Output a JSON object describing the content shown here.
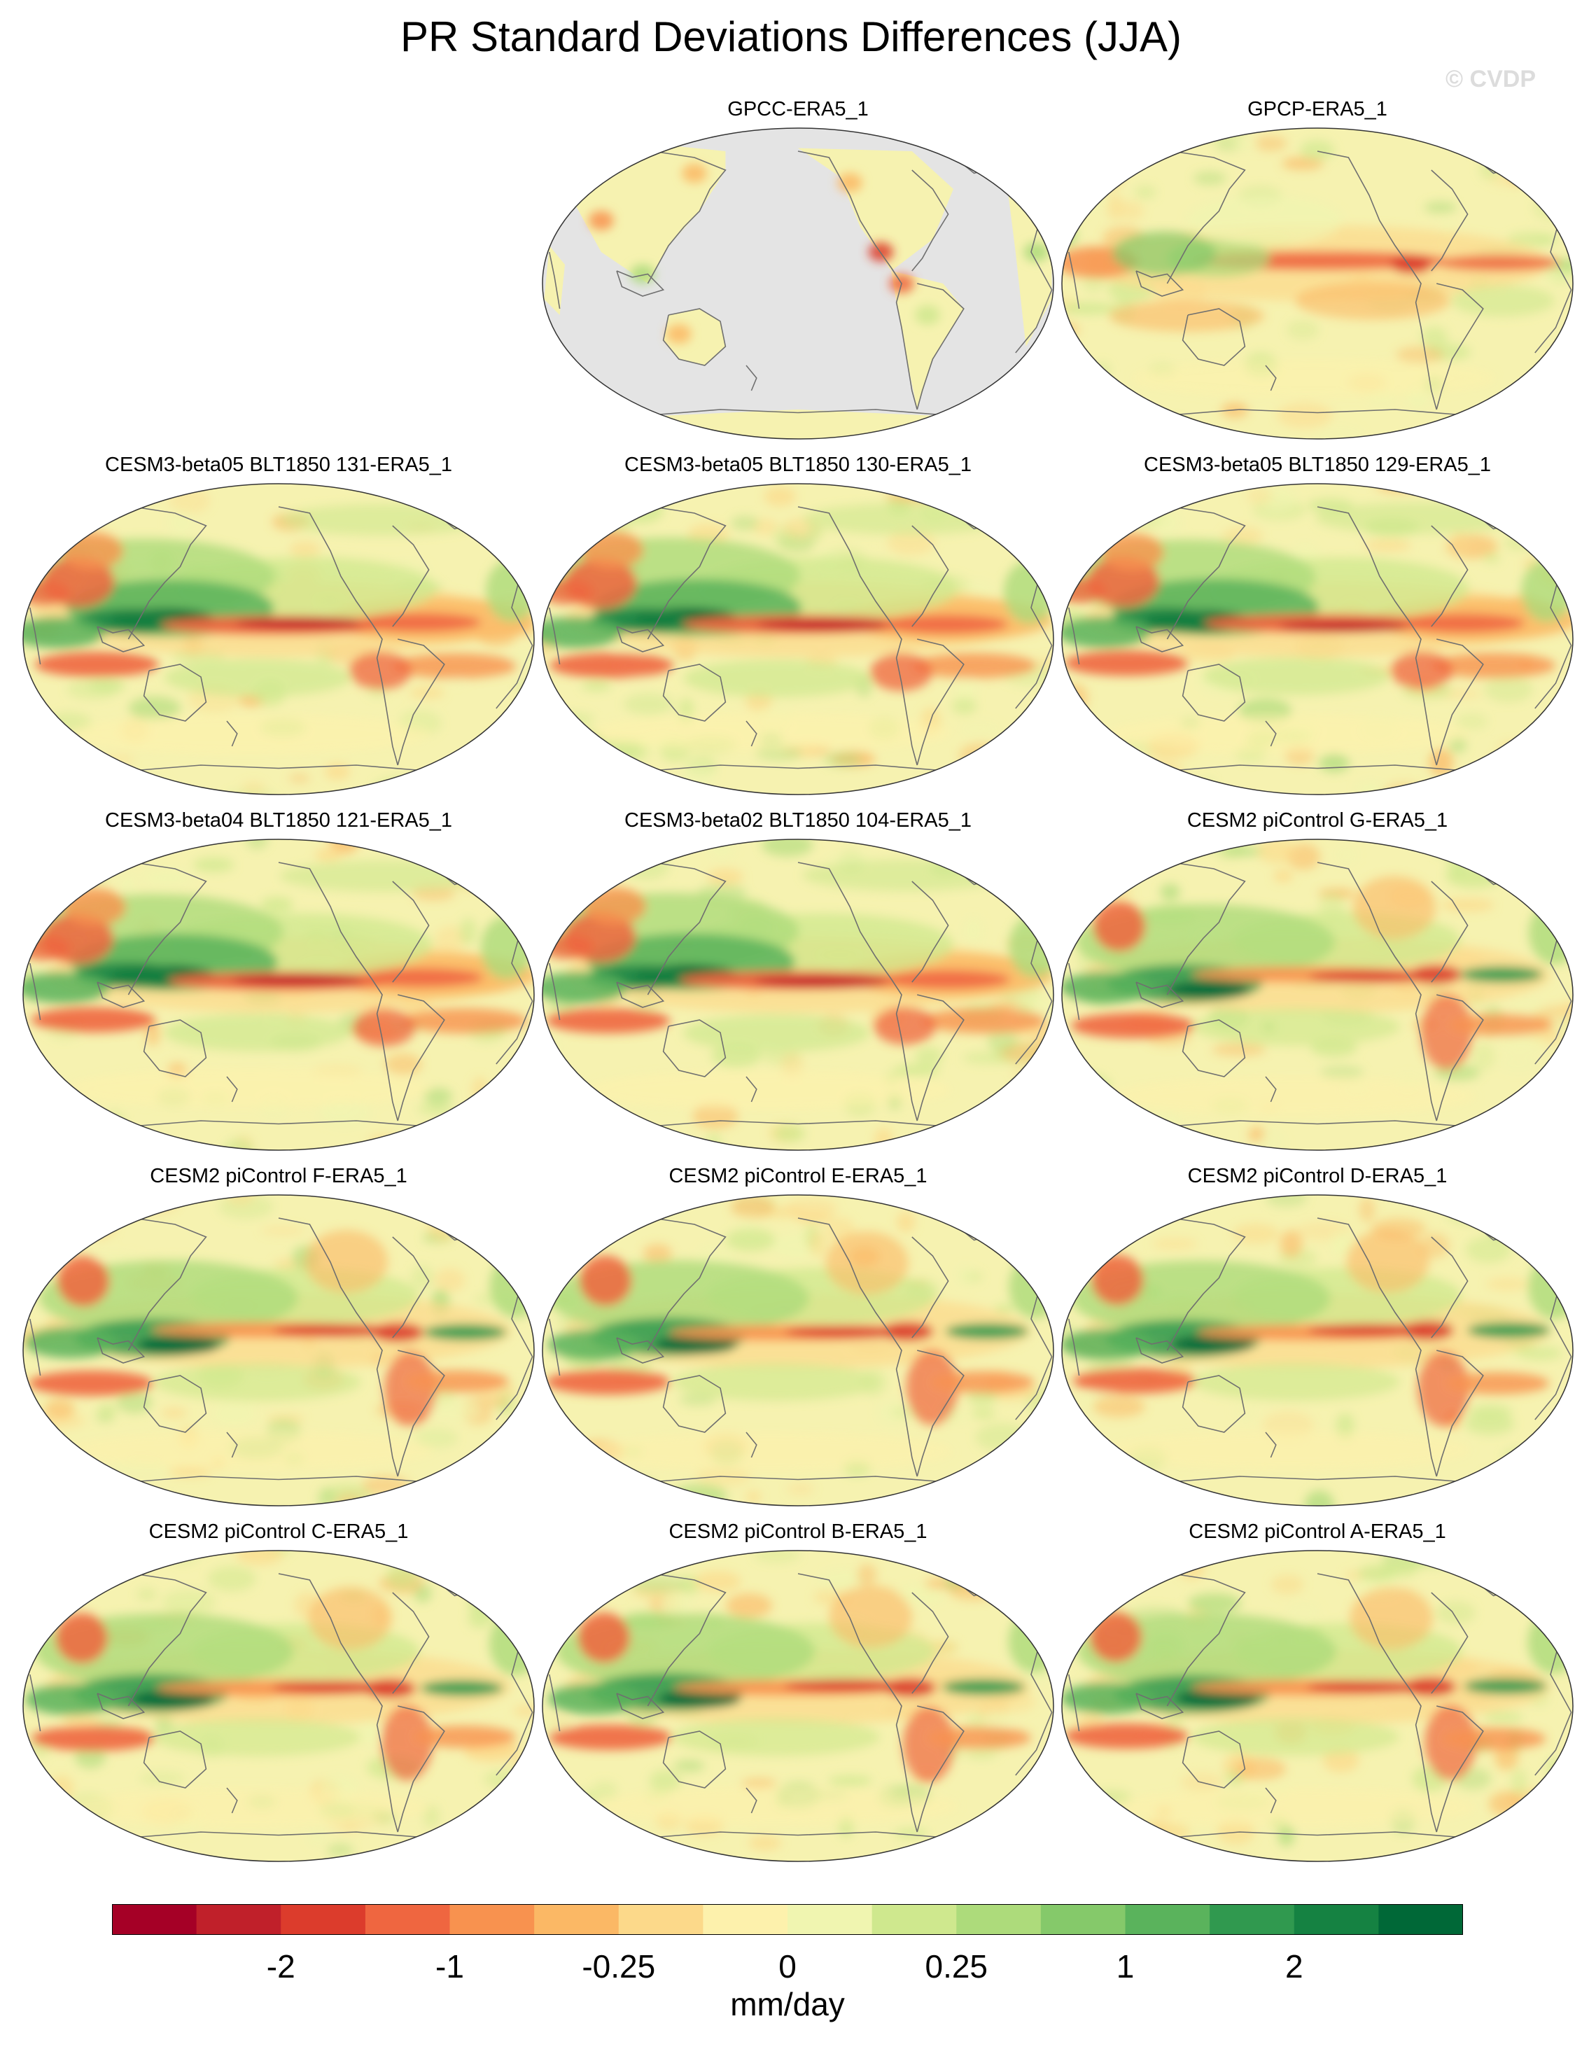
{
  "title": "PR Standard Deviations Differences (JJA)",
  "watermark": "© CVDP",
  "colors": {
    "ocean_mask": "#e4e4e4",
    "coast": "#6f6f6f",
    "base": "#f6f2b0",
    "scale": [
      "#a50026",
      "#c0202a",
      "#dc3c2c",
      "#ef6640",
      "#f8924f",
      "#fbb865",
      "#fcd98a",
      "#fdf1ac",
      "#f0f5b0",
      "#cfe88e",
      "#addb7b",
      "#85c96a",
      "#5ab35c",
      "#30994f",
      "#158242",
      "#006837"
    ]
  },
  "chart_data": {
    "type": "heatmap",
    "projection": "robinson (global, pacific-centered)",
    "panels": [
      {
        "id": "gpcc",
        "title": "GPCC-ERA5_1",
        "pattern": "land-only"
      },
      {
        "id": "gpcp",
        "title": "GPCP-ERA5_1",
        "pattern": "obs"
      },
      {
        "id": "b05-131",
        "title": "CESM3-beta05 BLT1850 131-ERA5_1",
        "pattern": "cesm3"
      },
      {
        "id": "b05-130",
        "title": "CESM3-beta05 BLT1850 130-ERA5_1",
        "pattern": "cesm3"
      },
      {
        "id": "b05-129",
        "title": "CESM3-beta05 BLT1850 129-ERA5_1",
        "pattern": "cesm3"
      },
      {
        "id": "b04-121",
        "title": "CESM3-beta04 BLT1850 121-ERA5_1",
        "pattern": "cesm3"
      },
      {
        "id": "b02-104",
        "title": "CESM3-beta02 BLT1850 104-ERA5_1",
        "pattern": "cesm3"
      },
      {
        "id": "pic-g",
        "title": "CESM2 piControl G-ERA5_1",
        "pattern": "cesm2"
      },
      {
        "id": "pic-f",
        "title": "CESM2 piControl F-ERA5_1",
        "pattern": "cesm2"
      },
      {
        "id": "pic-e",
        "title": "CESM2 piControl E-ERA5_1",
        "pattern": "cesm2"
      },
      {
        "id": "pic-d",
        "title": "CESM2 piControl D-ERA5_1",
        "pattern": "cesm2"
      },
      {
        "id": "pic-c",
        "title": "CESM2 piControl C-ERA5_1",
        "pattern": "cesm2"
      },
      {
        "id": "pic-b",
        "title": "CESM2 piControl B-ERA5_1",
        "pattern": "cesm2"
      },
      {
        "id": "pic-a",
        "title": "CESM2 piControl A-ERA5_1",
        "pattern": "cesm2"
      }
    ],
    "colorbar": {
      "n_bins": 16,
      "labels": [
        "-2",
        "-1",
        "-0.25",
        "0",
        "0.25",
        "1",
        "2"
      ],
      "label_boundaries": [
        2,
        4,
        6,
        8,
        10,
        12,
        14
      ],
      "units": "mm/day"
    }
  }
}
